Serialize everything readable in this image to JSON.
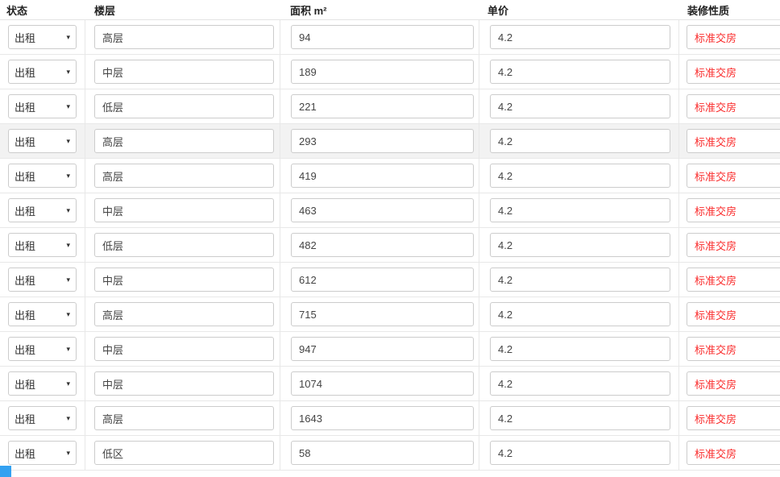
{
  "table": {
    "headers": {
      "status": "状态",
      "floor": "楼层",
      "area": "面积 m²",
      "price": "单价",
      "decor": "装修性质"
    },
    "rows": [
      {
        "status": "出租",
        "floor": "高层",
        "area": "94",
        "price": "4.2",
        "decor": "标准交房"
      },
      {
        "status": "出租",
        "floor": "中层",
        "area": "189",
        "price": "4.2",
        "decor": "标准交房"
      },
      {
        "status": "出租",
        "floor": "低层",
        "area": "221",
        "price": "4.2",
        "decor": "标准交房"
      },
      {
        "status": "出租",
        "floor": "高层",
        "area": "293",
        "price": "4.2",
        "decor": "标准交房"
      },
      {
        "status": "出租",
        "floor": "高层",
        "area": "419",
        "price": "4.2",
        "decor": "标准交房"
      },
      {
        "status": "出租",
        "floor": "中层",
        "area": "463",
        "price": "4.2",
        "decor": "标准交房"
      },
      {
        "status": "出租",
        "floor": "低层",
        "area": "482",
        "price": "4.2",
        "decor": "标准交房"
      },
      {
        "status": "出租",
        "floor": "中层",
        "area": "612",
        "price": "4.2",
        "decor": "标准交房"
      },
      {
        "status": "出租",
        "floor": "高层",
        "area": "715",
        "price": "4.2",
        "decor": "标准交房"
      },
      {
        "status": "出租",
        "floor": "中层",
        "area": "947",
        "price": "4.2",
        "decor": "标准交房"
      },
      {
        "status": "出租",
        "floor": "中层",
        "area": "1074",
        "price": "4.2",
        "decor": "标准交房"
      },
      {
        "status": "出租",
        "floor": "高层",
        "area": "1643",
        "price": "4.2",
        "decor": "标准交房"
      },
      {
        "status": "出租",
        "floor": "低区",
        "area": "58",
        "price": "4.2",
        "decor": "标准交房"
      }
    ],
    "hover_row_index": 3
  },
  "icons": {
    "caret_down": "▾"
  },
  "colors": {
    "decor_red": "#fa2d2d",
    "hover_row_bg": "#f2f2f2",
    "add_button_blue": "#33a1f1",
    "grid_line": "#e8e8e8",
    "input_border": "#cccccc"
  }
}
